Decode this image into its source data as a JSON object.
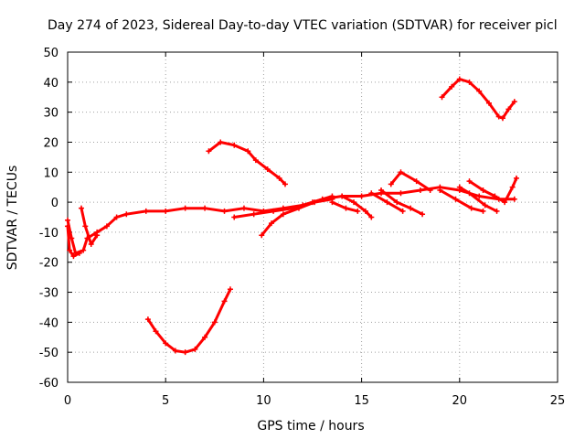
{
  "chart_data": {
    "type": "scatter",
    "title": "Day 274 of 2023, Sidereal Day-to-day VTEC variation (SDTVAR) for receiver picl",
    "xlabel": "GPS time / hours",
    "ylabel": "SDTVAR / TECUs",
    "xlim": [
      0,
      25
    ],
    "ylim": [
      -60,
      50
    ],
    "xticks": [
      "0",
      "5",
      "10",
      "15",
      "20",
      "25"
    ],
    "yticks": [
      "-60",
      "-50",
      "-40",
      "-30",
      "-20",
      "-10",
      "0",
      "10",
      "20",
      "30",
      "40",
      "50"
    ],
    "grid": true,
    "marker_color": "#ff0000",
    "series": [
      {
        "name": "trace-main",
        "points": [
          [
            0,
            -6
          ],
          [
            0.2,
            -12
          ],
          [
            0.4,
            -17
          ],
          [
            0.8,
            -16
          ],
          [
            1,
            -12
          ],
          [
            1.5,
            -10
          ],
          [
            2,
            -8
          ],
          [
            2.5,
            -5
          ],
          [
            3,
            -4
          ],
          [
            4,
            -3
          ],
          [
            5,
            -3
          ],
          [
            6,
            -2
          ],
          [
            7,
            -2
          ],
          [
            8,
            -3
          ],
          [
            9,
            -2
          ],
          [
            10,
            -3
          ],
          [
            11,
            -2
          ],
          [
            12,
            -1
          ],
          [
            13,
            1
          ],
          [
            14,
            2
          ],
          [
            15,
            2
          ],
          [
            16,
            3
          ],
          [
            17,
            3
          ],
          [
            18,
            4
          ],
          [
            19,
            5
          ],
          [
            20,
            4
          ],
          [
            21,
            2
          ],
          [
            22,
            1
          ],
          [
            22.8,
            1
          ]
        ]
      },
      {
        "name": "trace-drop-left",
        "points": [
          [
            0,
            -8
          ],
          [
            0.1,
            -16
          ],
          [
            0.3,
            -18
          ],
          [
            0.6,
            -17
          ]
        ]
      },
      {
        "name": "trace-spike-left",
        "points": [
          [
            0.7,
            -2
          ],
          [
            0.9,
            -8
          ],
          [
            1.2,
            -14
          ],
          [
            1.5,
            -11
          ]
        ]
      },
      {
        "name": "trace-low-curve",
        "points": [
          [
            4.1,
            -39
          ],
          [
            4.5,
            -43
          ],
          [
            5,
            -47
          ],
          [
            5.5,
            -49.5
          ],
          [
            6,
            -50
          ],
          [
            6.5,
            -49
          ],
          [
            7,
            -45
          ],
          [
            7.5,
            -40
          ],
          [
            8,
            -33
          ],
          [
            8.3,
            -29
          ]
        ]
      },
      {
        "name": "trace-mid-arc",
        "points": [
          [
            7.2,
            17
          ],
          [
            7.8,
            20
          ],
          [
            8.5,
            19
          ],
          [
            9.2,
            17
          ],
          [
            9.6,
            14
          ],
          [
            10.2,
            11
          ],
          [
            10.8,
            8
          ],
          [
            11.1,
            6
          ]
        ]
      },
      {
        "name": "trace-low-rise",
        "points": [
          [
            9.9,
            -11
          ],
          [
            10.4,
            -7
          ],
          [
            11,
            -4
          ],
          [
            11.8,
            -2
          ],
          [
            12.6,
            0
          ],
          [
            13.5,
            1
          ]
        ]
      },
      {
        "name": "trace-mid-low",
        "points": [
          [
            8.5,
            -5
          ],
          [
            9.5,
            -4
          ],
          [
            10.5,
            -3
          ],
          [
            11.5,
            -2
          ],
          [
            12.5,
            0
          ],
          [
            13.5,
            2
          ]
        ]
      },
      {
        "name": "trace-d1",
        "points": [
          [
            14,
            2
          ],
          [
            14.6,
            0
          ],
          [
            15.2,
            -3
          ],
          [
            15.5,
            -5
          ]
        ]
      },
      {
        "name": "trace-d2",
        "points": [
          [
            13.5,
            0
          ],
          [
            14.2,
            -2
          ],
          [
            14.8,
            -3
          ]
        ]
      },
      {
        "name": "trace-d3",
        "points": [
          [
            16,
            4
          ],
          [
            16.8,
            0
          ],
          [
            17.5,
            -2
          ],
          [
            18.1,
            -4
          ]
        ]
      },
      {
        "name": "trace-d4",
        "points": [
          [
            15.5,
            3
          ],
          [
            16.3,
            0
          ],
          [
            17.1,
            -3
          ]
        ]
      },
      {
        "name": "trace-spike-mid",
        "points": [
          [
            16.5,
            6
          ],
          [
            17,
            10
          ],
          [
            17.8,
            7
          ],
          [
            18.5,
            4
          ]
        ]
      },
      {
        "name": "trace-d5",
        "points": [
          [
            20,
            5
          ],
          [
            20.5,
            3
          ],
          [
            21.3,
            -1
          ],
          [
            21.9,
            -3
          ]
        ]
      },
      {
        "name": "trace-d6",
        "points": [
          [
            19,
            4
          ],
          [
            19.8,
            1
          ],
          [
            20.6,
            -2
          ],
          [
            21.2,
            -3
          ]
        ]
      },
      {
        "name": "trace-right-up",
        "points": [
          [
            20.5,
            7
          ],
          [
            21.2,
            4
          ],
          [
            21.8,
            2
          ],
          [
            22.3,
            0
          ],
          [
            22.7,
            5
          ],
          [
            22.9,
            8
          ]
        ]
      },
      {
        "name": "trace-top-right",
        "points": [
          [
            19.1,
            35
          ],
          [
            19.6,
            38.5
          ],
          [
            20,
            41
          ],
          [
            20.5,
            40
          ],
          [
            21,
            37
          ],
          [
            21.5,
            33
          ],
          [
            22,
            28.5
          ],
          [
            22.2,
            28
          ],
          [
            22.5,
            31
          ],
          [
            22.8,
            33.5
          ]
        ]
      }
    ]
  }
}
